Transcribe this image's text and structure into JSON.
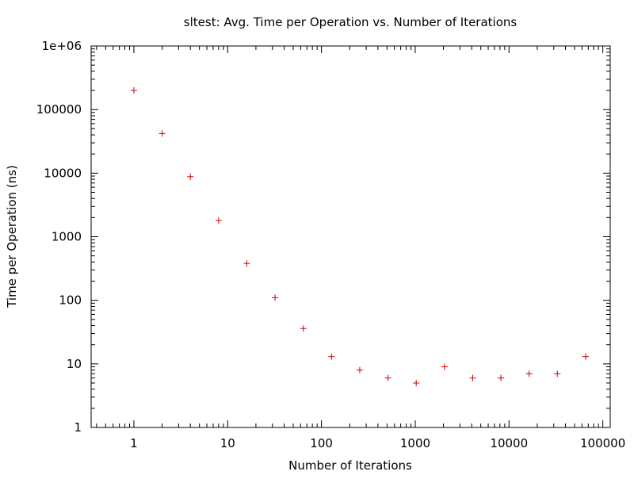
{
  "chart_data": {
    "type": "scatter",
    "title": "sltest: Avg. Time per Operation vs. Number of Iterations",
    "xlabel": "Number of Iterations",
    "ylabel": "Time per Operation (ns)",
    "x_scale": "log",
    "y_scale": "log",
    "xlim": [
      0.35,
      120000
    ],
    "ylim": [
      1,
      1000000
    ],
    "x_ticks": [
      {
        "value": 1,
        "label": "1"
      },
      {
        "value": 10,
        "label": "10"
      },
      {
        "value": 100,
        "label": "100"
      },
      {
        "value": 1000,
        "label": "1000"
      },
      {
        "value": 10000,
        "label": "10000"
      },
      {
        "value": 100000,
        "label": "100000"
      }
    ],
    "y_ticks": [
      {
        "value": 1,
        "label": "1"
      },
      {
        "value": 10,
        "label": "10"
      },
      {
        "value": 100,
        "label": "100"
      },
      {
        "value": 1000,
        "label": "1000"
      },
      {
        "value": 10000,
        "label": "10000"
      },
      {
        "value": 100000,
        "label": "100000"
      },
      {
        "value": 1000000,
        "label": "1e+06"
      }
    ],
    "grid": false,
    "marker": "+",
    "marker_color": "#cc0000",
    "series": [
      {
        "points": [
          {
            "x": 1,
            "y": 200000
          },
          {
            "x": 2,
            "y": 42000
          },
          {
            "x": 4,
            "y": 8800
          },
          {
            "x": 8,
            "y": 1800
          },
          {
            "x": 16,
            "y": 380
          },
          {
            "x": 32,
            "y": 110
          },
          {
            "x": 64,
            "y": 36
          },
          {
            "x": 128,
            "y": 13
          },
          {
            "x": 256,
            "y": 8
          },
          {
            "x": 512,
            "y": 6
          },
          {
            "x": 1024,
            "y": 5
          },
          {
            "x": 2048,
            "y": 9
          },
          {
            "x": 4096,
            "y": 6
          },
          {
            "x": 8192,
            "y": 6
          },
          {
            "x": 16384,
            "y": 7
          },
          {
            "x": 32768,
            "y": 7
          },
          {
            "x": 65536,
            "y": 13
          }
        ]
      }
    ]
  }
}
